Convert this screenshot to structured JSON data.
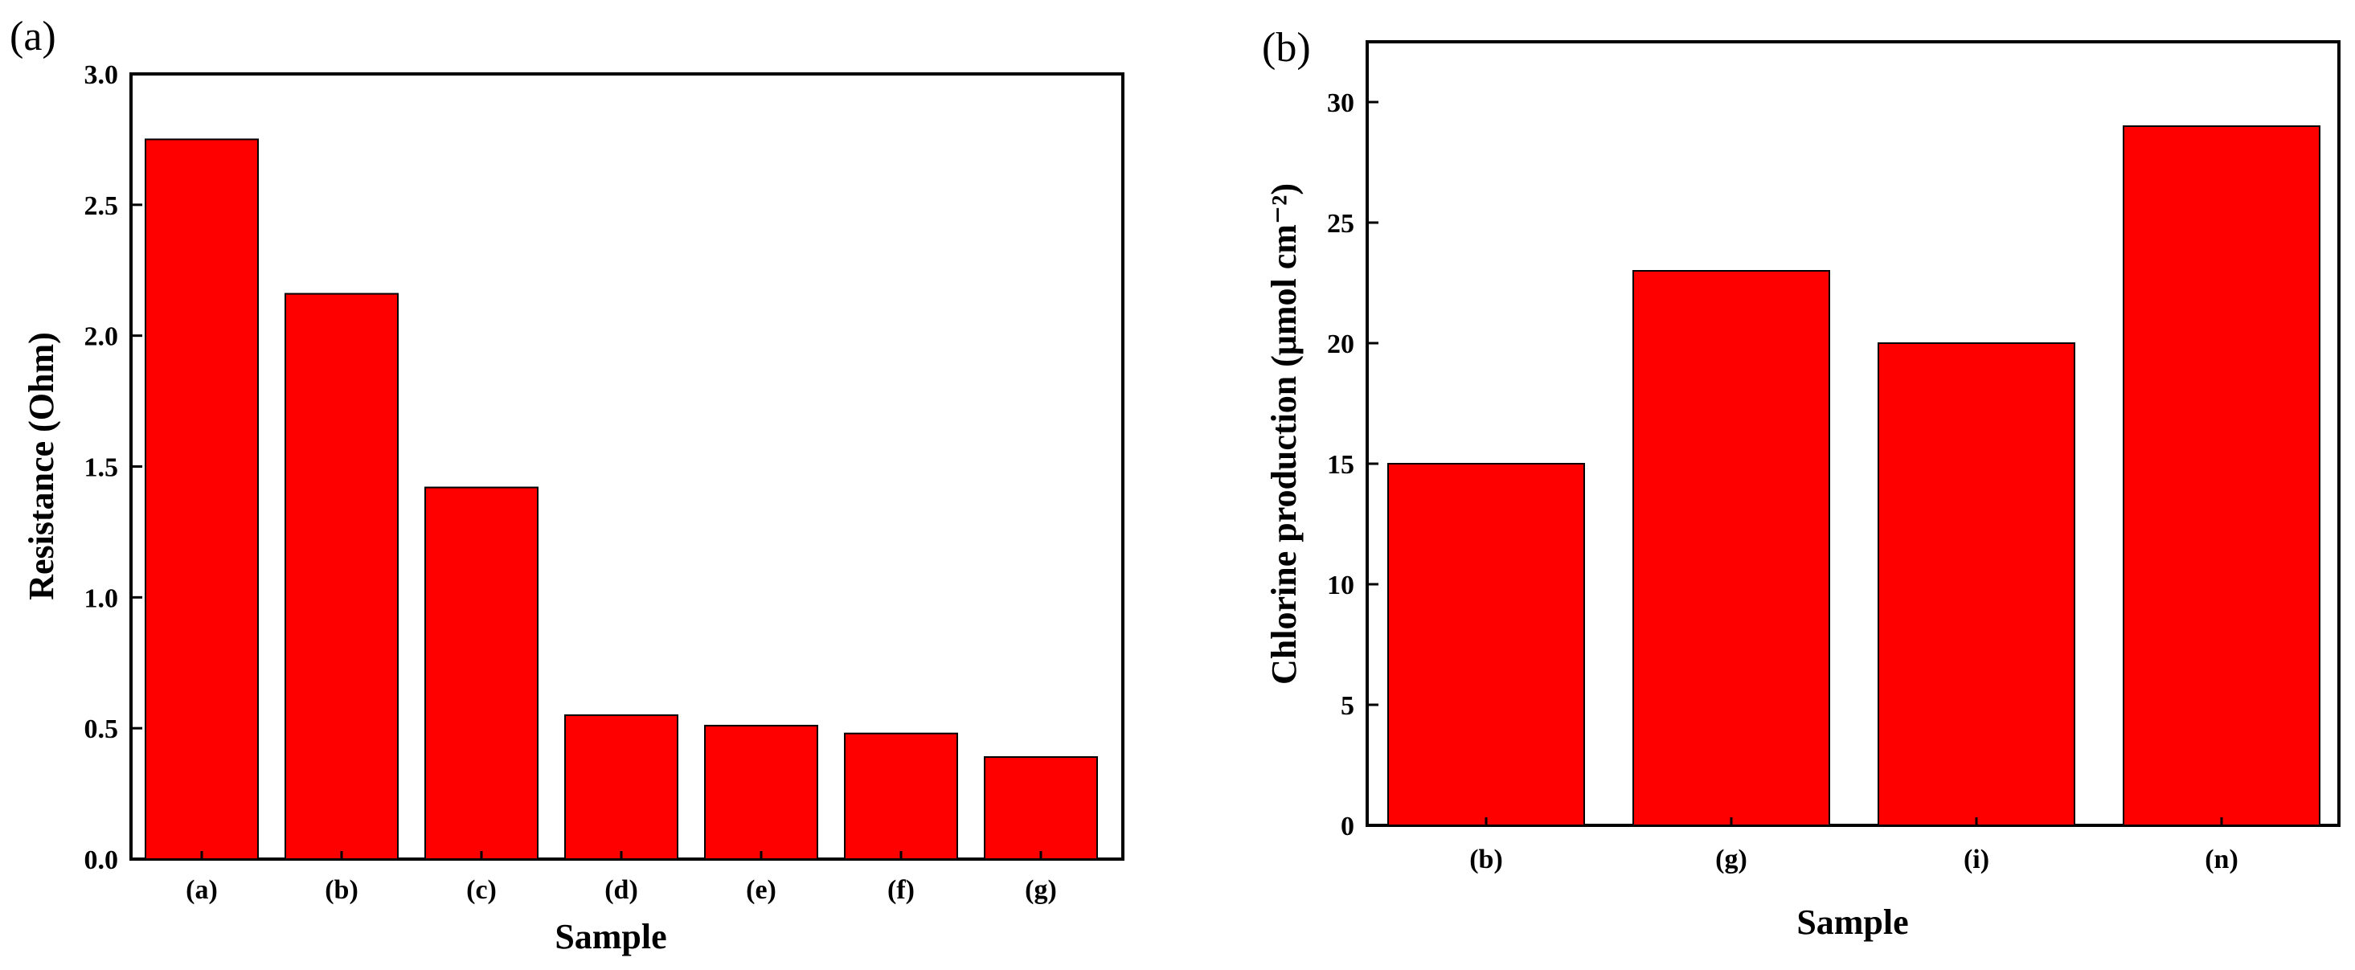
{
  "colors": {
    "bar": "#ff0000",
    "axis": "#000000",
    "background": "#ffffff"
  },
  "chart_data": [
    {
      "type": "bar",
      "panel_label": "(a)",
      "categories": [
        "(a)",
        "(b)",
        "(c)",
        "(d)",
        "(e)",
        "(f)",
        "(g)"
      ],
      "values": [
        2.75,
        2.16,
        1.42,
        0.55,
        0.51,
        0.48,
        0.39
      ],
      "xlabel": "Sample",
      "ylabel": "Resistance (Ohm)",
      "ylim": [
        0,
        3.0
      ],
      "yticks": [
        "0.0",
        "0.5",
        "1.0",
        "1.5",
        "2.0",
        "2.5",
        "3.0"
      ],
      "grid": false,
      "legend": "none"
    },
    {
      "type": "bar",
      "panel_label": "(b)",
      "categories": [
        "(b)",
        "(g)",
        "(i)",
        "(n)"
      ],
      "values": [
        15,
        23,
        20,
        29
      ],
      "xlabel": "Sample",
      "ylabel": "Chlorine production (μmol cm⁻²)",
      "ylim": [
        0,
        32.5
      ],
      "yticks": [
        "0",
        "5",
        "10",
        "15",
        "20",
        "25",
        "30"
      ],
      "grid": false,
      "legend": "none"
    }
  ]
}
